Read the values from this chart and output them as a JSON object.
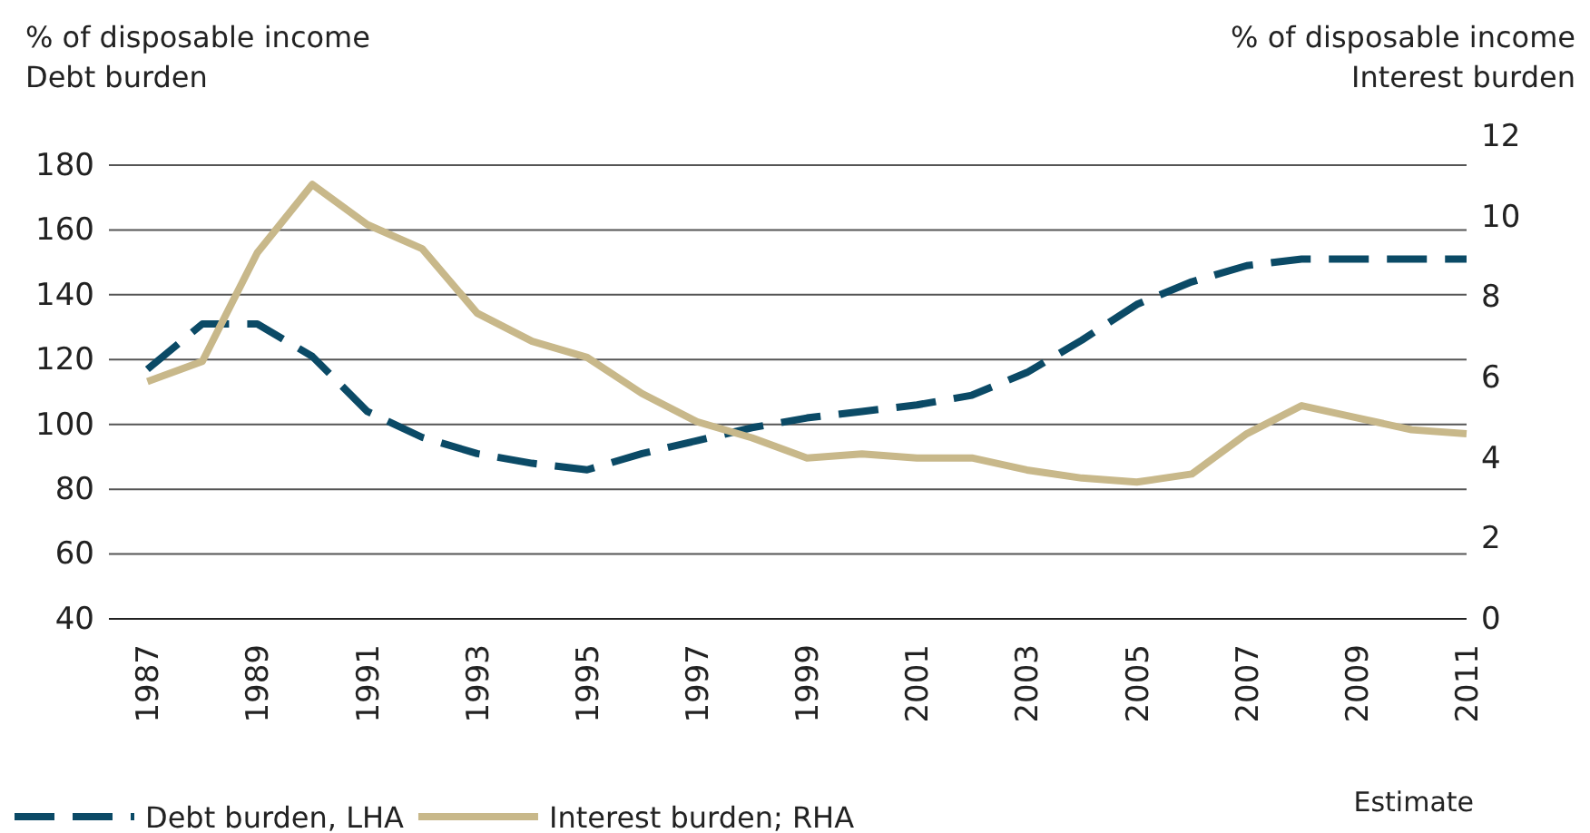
{
  "chart_data": {
    "type": "line",
    "ylabel": "% of disposable income\nDebt burden",
    "y2label": "% of disposable income\nInterest burden",
    "x": [
      1987,
      1988,
      1989,
      1990,
      1991,
      1992,
      1993,
      1994,
      1995,
      1996,
      1997,
      1998,
      1999,
      2000,
      2001,
      2002,
      2003,
      2004,
      2005,
      2006,
      2007,
      2008,
      2009,
      2010,
      2011
    ],
    "series": [
      {
        "name": "Debt burden, LHA",
        "color": "#0b4a66",
        "line_style": "dashed",
        "values": [
          117,
          131,
          131,
          121,
          104,
          96,
          91,
          88,
          86,
          91,
          95,
          99,
          102,
          104,
          106,
          109,
          116,
          126,
          137,
          144,
          149,
          151,
          151,
          151,
          151
        ]
      },
      {
        "name": "Interest burden; RHA",
        "color": "#c8b88a",
        "line_style": "solid",
        "axis": "y2",
        "values": [
          5.9,
          6.4,
          9.1,
          10.8,
          9.8,
          9.2,
          7.6,
          6.9,
          6.5,
          5.6,
          4.9,
          4.5,
          4.0,
          4.1,
          4.0,
          4.0,
          3.7,
          3.5,
          3.4,
          3.6,
          4.6,
          5.3,
          5.0,
          4.7,
          4.6
        ]
      }
    ],
    "xlim": [
      1986.3,
      2011
    ],
    "xticks": [
      1987,
      1989,
      1991,
      1993,
      1995,
      1997,
      1999,
      2001,
      2003,
      2005,
      2007,
      2009,
      2011
    ],
    "ylim": [
      40,
      180
    ],
    "yticks": [
      40,
      60,
      80,
      100,
      120,
      140,
      160,
      180
    ],
    "y2lim": [
      0,
      12
    ],
    "y2ticks": [
      0,
      2,
      4,
      6,
      8,
      10,
      12
    ],
    "grid": "y",
    "legend": "bottom",
    "marker": "none",
    "annotations": [
      "Estimate"
    ]
  }
}
